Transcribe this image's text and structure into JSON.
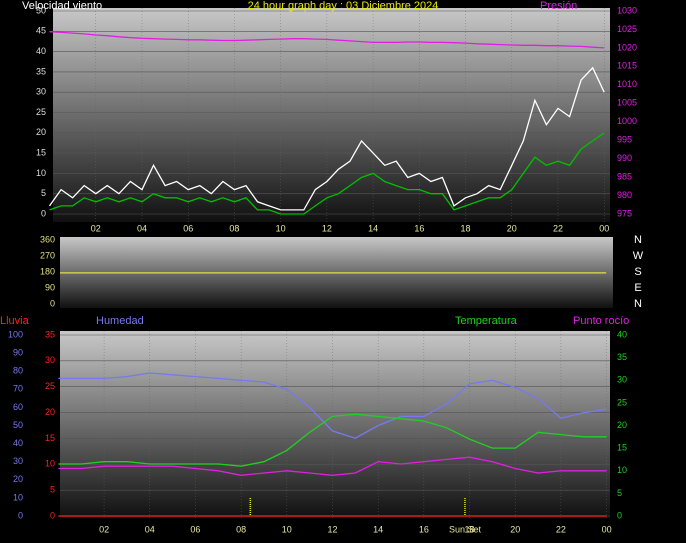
{
  "chart_data": [
    {
      "type": "line",
      "title": "24 hour graph day : 03 Diciembre 2024",
      "x": [
        0,
        0.5,
        1,
        1.5,
        2,
        2.5,
        3,
        3.5,
        4,
        4.5,
        5,
        5.5,
        6,
        6.5,
        7,
        7.5,
        8,
        8.5,
        9,
        9.5,
        10,
        10.5,
        11,
        11.5,
        12,
        12.5,
        13,
        13.5,
        14,
        14.5,
        15,
        15.5,
        16,
        16.5,
        17,
        17.5,
        18,
        18.5,
        19,
        19.5,
        20,
        20.5,
        21,
        21.5,
        22,
        22.5,
        23,
        23.5,
        24
      ],
      "xlim": [
        0.15,
        24.25
      ],
      "xticks": [
        {
          "value": 2,
          "label": "02"
        },
        {
          "value": 4,
          "label": "04"
        },
        {
          "value": 6,
          "label": "06"
        },
        {
          "value": 8,
          "label": "08"
        },
        10,
        12,
        14,
        16,
        18,
        20,
        22,
        {
          "value": 24,
          "label": "00"
        }
      ],
      "ylim": [
        0,
        50
      ],
      "yticks": [
        0,
        5,
        10,
        15,
        20,
        25,
        30,
        35,
        40,
        45,
        50
      ],
      "y2lim": [
        975,
        1030
      ],
      "y2ticks": [
        975,
        980,
        985,
        990,
        995,
        1000,
        1005,
        1010,
        1015,
        1020,
        1025,
        1030
      ],
      "grid": true,
      "series": [
        {
          "name": "Velocidad viento",
          "color": "#ffffff",
          "values": [
            2,
            6,
            4,
            7,
            5,
            7,
            5,
            8,
            6,
            12,
            7,
            8,
            6,
            7,
            5,
            8,
            6,
            7,
            3,
            2,
            1,
            1,
            1,
            6,
            8,
            11,
            13,
            18,
            15,
            12,
            13,
            9,
            10,
            8,
            9,
            2,
            4,
            5,
            7,
            6,
            12,
            18,
            28,
            22,
            26,
            24,
            33,
            36,
            30
          ]
        },
        {
          "color": "#00c000",
          "values": [
            1,
            2,
            2,
            4,
            3,
            4,
            3,
            4,
            3,
            5,
            4,
            4,
            3,
            4,
            3,
            4,
            3,
            4,
            1,
            1,
            0,
            0,
            0,
            2,
            4,
            5,
            7,
            9,
            10,
            8,
            7,
            6,
            6,
            5,
            5,
            1,
            2,
            3,
            4,
            4,
            6,
            10,
            14,
            12,
            13,
            12,
            16,
            18,
            20
          ]
        },
        {
          "name": "Presión",
          "color": "#e020e0",
          "axis": "y2",
          "values": [
            1024.4,
            1024.2,
            1024.0,
            1023.8,
            1023.5,
            1023.3,
            1023.0,
            1022.8,
            1022.6,
            1022.5,
            1022.4,
            1022.3,
            1022.2,
            1022.2,
            1022.1,
            1022.0,
            1022.0,
            1022.1,
            1022.2,
            1022.3,
            1022.4,
            1022.5,
            1022.5,
            1022.4,
            1022.3,
            1022.1,
            1021.9,
            1021.7,
            1021.5,
            1021.5,
            1021.5,
            1021.6,
            1021.6,
            1021.5,
            1021.5,
            1021.4,
            1021.3,
            1021.1,
            1021.0,
            1020.9,
            1020.8,
            1020.7,
            1020.7,
            1020.6,
            1020.6,
            1020.5,
            1020.4,
            1020.2,
            1020.0
          ]
        }
      ]
    },
    {
      "type": "line",
      "x": [
        0,
        24
      ],
      "xlim": [
        0,
        24.3
      ],
      "ylim": [
        0,
        360
      ],
      "yticks": [
        0,
        90,
        180,
        270,
        360
      ],
      "grid": false,
      "series": [
        {
          "color": "#e0e040",
          "values": [
            175,
            175
          ]
        }
      ],
      "compass": [
        "N",
        "W",
        "S",
        "E",
        "N"
      ]
    },
    {
      "type": "line",
      "x": [
        0,
        1,
        2,
        3,
        4,
        5,
        6,
        7,
        8,
        9,
        10,
        11,
        12,
        13,
        14,
        15,
        16,
        17,
        18,
        19,
        20,
        21,
        22,
        23,
        24
      ],
      "xlim": [
        0.07,
        24.15
      ],
      "xticks": [
        {
          "value": 2,
          "label": "02"
        },
        {
          "value": 4,
          "label": "04"
        },
        {
          "value": 6,
          "label": "06"
        },
        {
          "value": 8,
          "label": "08"
        },
        10,
        12,
        14,
        16,
        18,
        20,
        22,
        {
          "value": 24,
          "label": "00"
        }
      ],
      "ylim": [
        0,
        35
      ],
      "yticks": [
        0,
        5,
        10,
        15,
        20,
        25,
        30,
        35
      ],
      "y3lim": [
        0,
        100
      ],
      "y3ticks": [
        0,
        10,
        20,
        30,
        40,
        50,
        60,
        70,
        80,
        90,
        100
      ],
      "y2lim": [
        0,
        40
      ],
      "y2ticks": [
        0,
        5,
        10,
        15,
        20,
        25,
        30,
        35,
        40
      ],
      "grid": true,
      "series": [
        {
          "name": "Lluvia",
          "color": "#ff2020",
          "values": [
            0,
            0,
            0,
            0,
            0,
            0,
            0,
            0,
            0,
            0,
            0,
            0,
            0,
            0,
            0,
            0,
            0,
            0,
            0,
            0,
            0,
            0,
            0,
            0,
            0
          ]
        },
        {
          "name": "Humedad",
          "color": "#7878f0",
          "axis": "y3",
          "values": [
            76,
            76,
            76,
            77,
            79,
            78,
            77,
            76,
            75,
            74,
            70,
            60,
            47,
            43,
            50,
            55,
            55,
            62,
            73,
            75,
            71,
            65,
            54,
            57,
            59
          ]
        },
        {
          "name": "Temperatura",
          "color": "#20d020",
          "axis": "y2",
          "values": [
            11.5,
            11.5,
            12,
            12,
            11.5,
            11.5,
            11.5,
            11.5,
            11,
            12,
            14.5,
            18.5,
            22,
            22.5,
            22,
            21.5,
            21,
            19.5,
            17,
            15,
            15,
            18.5,
            18,
            17.5,
            17.5
          ]
        },
        {
          "name": "Punto rocío",
          "color": "#e020e0",
          "axis": "y2",
          "values": [
            10.5,
            10.5,
            11,
            11,
            11,
            11,
            10.5,
            10,
            9,
            9.5,
            10,
            9.5,
            9,
            9.5,
            12,
            11.5,
            12,
            12.5,
            13,
            12,
            10.5,
            9.5,
            10,
            10,
            10
          ]
        }
      ],
      "sun_markers": [
        {
          "x": 8.4
        },
        {
          "x": 17.8,
          "label": "Sun Set"
        }
      ]
    }
  ]
}
